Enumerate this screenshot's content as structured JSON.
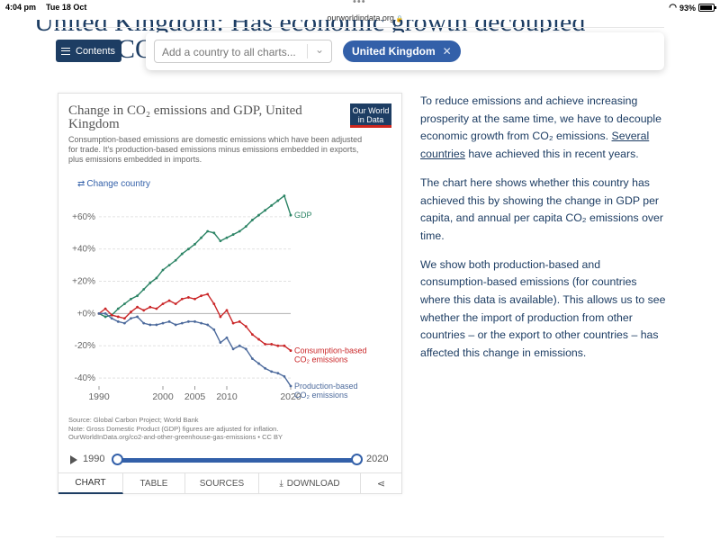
{
  "status": {
    "time": "4:04 pm",
    "date": "Tue 18 Oct",
    "url": "ourworldindata.org",
    "battery": "93%"
  },
  "page": {
    "heading_fragment": "United Kingdom: Has economic growth decoupled",
    "heading_fragment2": "CO",
    "contents_label": "Contents"
  },
  "country_selector": {
    "placeholder": "Add a country to all charts...",
    "selected_country": "United Kingdom"
  },
  "chart_header": {
    "title": "Change in CO₂ emissions and GDP, United Kingdom",
    "subtitle": "Consumption-based emissions are domestic emissions which have been adjusted for trade. It's production-based emissions minus emissions embedded in exports, plus emissions embedded in imports.",
    "logo_line1": "Our World",
    "logo_line2": "in Data",
    "change_country": "Change country",
    "source_line1": "Source: Global Carbon Project; World Bank",
    "source_line2": "Note: Gross Domestic Product (GDP) figures are adjusted for inflation.",
    "source_line3": "OurWorldInData.org/co2-and-other-greenhouse-gas-emissions • CC BY"
  },
  "chart_data": {
    "type": "line",
    "title": "Change in CO₂ emissions and GDP, United Kingdom",
    "x": [
      1990,
      1991,
      1992,
      1993,
      1994,
      1995,
      1996,
      1997,
      1998,
      1999,
      2000,
      2001,
      2002,
      2003,
      2004,
      2005,
      2006,
      2007,
      2008,
      2009,
      2010,
      2011,
      2012,
      2013,
      2014,
      2015,
      2016,
      2017,
      2018,
      2019,
      2020
    ],
    "ylim": [
      -45,
      75
    ],
    "yticks": [
      -40,
      -20,
      0,
      20,
      40,
      60
    ],
    "ytick_labels": [
      "-40%",
      "-20%",
      "+0%",
      "+20%",
      "+40%",
      "+60%"
    ],
    "xticks": [
      1990,
      2000,
      2005,
      2010,
      2020
    ],
    "grid": true,
    "series": [
      {
        "name": "GDP",
        "label_lines": [
          "GDP"
        ],
        "color": "#2c8465",
        "values": [
          0,
          -2,
          -1,
          3,
          6,
          9,
          11,
          15,
          19,
          22,
          27,
          30,
          33,
          37,
          40,
          43,
          47,
          51,
          50,
          45,
          47,
          49,
          51,
          54,
          58,
          61,
          64,
          67,
          70,
          73,
          61
        ]
      },
      {
        "name": "Consumption-based CO₂ emissions",
        "label_lines": [
          "Consumption-based",
          "CO₂ emissions"
        ],
        "color": "#ca2628",
        "values": [
          0,
          3,
          -1,
          -2,
          -3,
          1,
          4,
          2,
          4,
          3,
          6,
          8,
          6,
          9,
          10,
          9,
          11,
          12,
          6,
          -2,
          2,
          -6,
          -5,
          -8,
          -13,
          -16,
          -19,
          -19,
          -20,
          -20,
          -23
        ]
      },
      {
        "name": "Production-based CO₂ emissions",
        "label_lines": [
          "Production-based",
          "CO₂ emissions"
        ],
        "color": "#4c6a9c",
        "values": [
          0,
          0,
          -3,
          -5,
          -6,
          -3,
          -2,
          -6,
          -7,
          -7,
          -6,
          -5,
          -7,
          -6,
          -5,
          -5,
          -6,
          -7,
          -10,
          -18,
          -15,
          -22,
          -20,
          -22,
          -28,
          -31,
          -34,
          -36,
          -37,
          -39,
          -45
        ]
      }
    ]
  },
  "timeline": {
    "start_year": "1990",
    "end_year": "2020"
  },
  "tabs": {
    "chart": "CHART",
    "table": "TABLE",
    "sources": "SOURCES",
    "download": "DOWNLOAD"
  },
  "article": {
    "p1_a": "To reduce emissions and achieve increasing prosperity at the same time, we have to decouple economic growth from CO₂ emissions. ",
    "p1_link": "Several countries",
    "p1_b": " have achieved this in recent years.",
    "p2": "The chart here shows whether this country has achieved this by showing the change in GDP per capita, and annual per capita CO₂ emissions over time.",
    "p3": "We show both production-based and consumption-based emissions (for countries where this data is available). This allows us to see whether the import of production from other countries – or the export to other countries – has affected this change in emissions."
  }
}
